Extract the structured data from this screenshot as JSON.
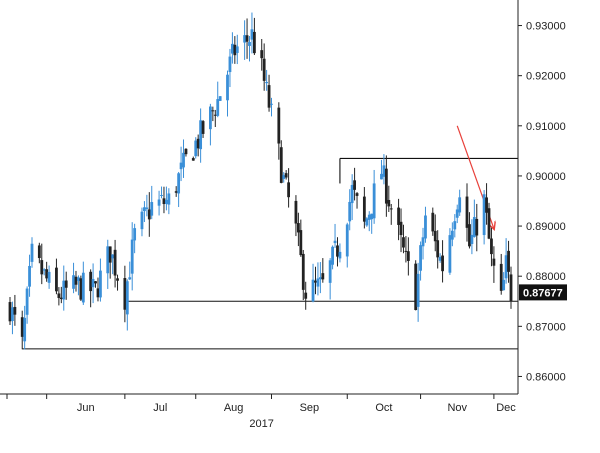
{
  "chart_data": {
    "type": "candlestick",
    "title": "",
    "xlabel": "2017",
    "ylabel": "",
    "y_axis_position": "right",
    "ylim": [
      0.8565,
      0.9335
    ],
    "yticks": [
      "0.86000",
      "0.87000",
      "0.88000",
      "0.89000",
      "0.90000",
      "0.91000",
      "0.92000",
      "0.93000"
    ],
    "yticks_values": [
      0.86,
      0.87,
      0.88,
      0.89,
      0.9,
      0.91,
      0.92,
      0.93
    ],
    "x_ticks": [
      {
        "label": "Jun",
        "date": "2017-06-01"
      },
      {
        "label": "Jul",
        "date": "2017-07-03"
      },
      {
        "label": "Aug",
        "date": "2017-08-01"
      },
      {
        "label": "Sep",
        "date": "2017-09-01"
      },
      {
        "label": "Oct",
        "date": "2017-10-02"
      },
      {
        "label": "Nov",
        "date": "2017-11-01"
      },
      {
        "label": "Dec",
        "date": "2017-12-01"
      }
    ],
    "x_start": "2017-05-17",
    "x_end": "2017-12-08",
    "year_label": "2017",
    "current_price": "0.87677",
    "up_color": "#3a8fd8",
    "down_color": "#222222",
    "grid": false,
    "close_path": [
      [
        "2017-05-17",
        0.874
      ],
      [
        "2017-05-22",
        0.866
      ],
      [
        "2017-05-26",
        0.884
      ],
      [
        "2017-06-05",
        0.876
      ],
      [
        "2017-06-14",
        0.878
      ],
      [
        "2017-06-21",
        0.877
      ],
      [
        "2017-06-27",
        0.885
      ],
      [
        "2017-07-03",
        0.876
      ],
      [
        "2017-07-07",
        0.888
      ],
      [
        "2017-07-14",
        0.894
      ],
      [
        "2017-07-21",
        0.895
      ],
      [
        "2017-07-28",
        0.903
      ],
      [
        "2017-08-04",
        0.909
      ],
      [
        "2017-08-10",
        0.915
      ],
      [
        "2017-08-17",
        0.925
      ],
      [
        "2017-08-24",
        0.928
      ],
      [
        "2017-08-28",
        0.921
      ],
      [
        "2017-09-01",
        0.912
      ],
      [
        "2017-09-06",
        0.899
      ],
      [
        "2017-09-11",
        0.889
      ],
      [
        "2017-09-15",
        0.877
      ],
      [
        "2017-09-22",
        0.878
      ],
      [
        "2017-09-29",
        0.887
      ],
      [
        "2017-10-04",
        0.897
      ],
      [
        "2017-10-09",
        0.89
      ],
      [
        "2017-10-16",
        0.901
      ],
      [
        "2017-10-23",
        0.888
      ],
      [
        "2017-10-30",
        0.876
      ],
      [
        "2017-11-03",
        0.892
      ],
      [
        "2017-11-10",
        0.882
      ],
      [
        "2017-11-17",
        0.898
      ],
      [
        "2017-11-21",
        0.886
      ],
      [
        "2017-11-27",
        0.895
      ],
      [
        "2017-11-30",
        0.883
      ],
      [
        "2017-12-04",
        0.875
      ],
      [
        "2017-12-06",
        0.882
      ],
      [
        "2017-12-08",
        0.8768
      ]
    ],
    "annotations": [
      {
        "type": "hline",
        "name": "low-support",
        "y": 0.8655,
        "x_from": "2017-05-22",
        "x_to": "2017-12-08"
      },
      {
        "type": "hline",
        "name": "range-support",
        "y": 0.875,
        "x_from": "2017-07-03",
        "x_to": "2017-12-08"
      },
      {
        "type": "hline",
        "name": "range-resistance",
        "y": 0.9035,
        "x_from": "2017-09-29",
        "x_to": "2017-12-08"
      },
      {
        "type": "vline",
        "name": "range-left-edge",
        "x": "2017-09-29",
        "y_from": 0.8985,
        "y_to": 0.9035
      },
      {
        "type": "arrow",
        "name": "downtrend-arrow",
        "color": "#e8403a",
        "from": [
          "2017-11-16",
          0.91
        ],
        "to": [
          "2017-12-01",
          0.8895
        ]
      }
    ]
  }
}
